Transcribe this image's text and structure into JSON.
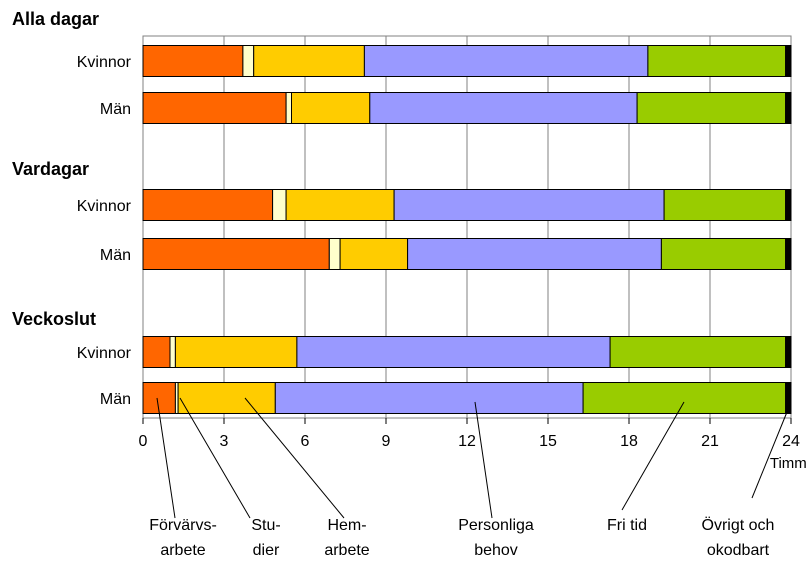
{
  "chart_data": {
    "type": "bar",
    "orientation": "horizontal",
    "stacked": true,
    "xlim": [
      0,
      24
    ],
    "xticks": [
      "0",
      "3",
      "6",
      "9",
      "12",
      "15",
      "18",
      "21",
      "24"
    ],
    "xunit": "Timmar",
    "grid": true,
    "groups": [
      {
        "title": "Alla dagar",
        "rows": [
          {
            "label": "Kvinnor",
            "values": [
              3.7,
              0.4,
              4.1,
              10.5,
              5.1,
              0.2
            ]
          },
          {
            "label": "Män",
            "values": [
              5.3,
              0.2,
              2.9,
              9.9,
              5.5,
              0.2
            ]
          }
        ]
      },
      {
        "title": "Vardagar",
        "rows": [
          {
            "label": "Kvinnor",
            "values": [
              4.8,
              0.5,
              4.0,
              10.0,
              4.5,
              0.2
            ]
          },
          {
            "label": "Män",
            "values": [
              6.9,
              0.4,
              2.5,
              9.4,
              4.6,
              0.2
            ]
          }
        ]
      },
      {
        "title": "Veckoslut",
        "rows": [
          {
            "label": "Kvinnor",
            "values": [
              1.0,
              0.2,
              4.5,
              11.6,
              6.5,
              0.2
            ]
          },
          {
            "label": "Män",
            "values": [
              1.2,
              0.1,
              3.6,
              11.4,
              7.5,
              0.2
            ]
          }
        ]
      }
    ],
    "series": [
      {
        "name": "Förvärvsarbete",
        "lines": [
          "Förvärvs-",
          "arbete"
        ],
        "color": "#ff6600"
      },
      {
        "name": "Studier",
        "lines": [
          "Stu-",
          "dier"
        ],
        "color": "#ffffcc"
      },
      {
        "name": "Hemarbete",
        "lines": [
          "Hem-",
          "arbete"
        ],
        "color": "#ffcc00"
      },
      {
        "name": "Personliga behov",
        "lines": [
          "Personliga",
          "behov"
        ],
        "color": "#9999ff"
      },
      {
        "name": "Fri tid",
        "lines": [
          "Fri tid"
        ],
        "color": "#99cc00"
      },
      {
        "name": "Övrigt och okodbart",
        "lines": [
          "Övrigt och",
          "okodbart"
        ],
        "color": "#000000"
      }
    ]
  }
}
